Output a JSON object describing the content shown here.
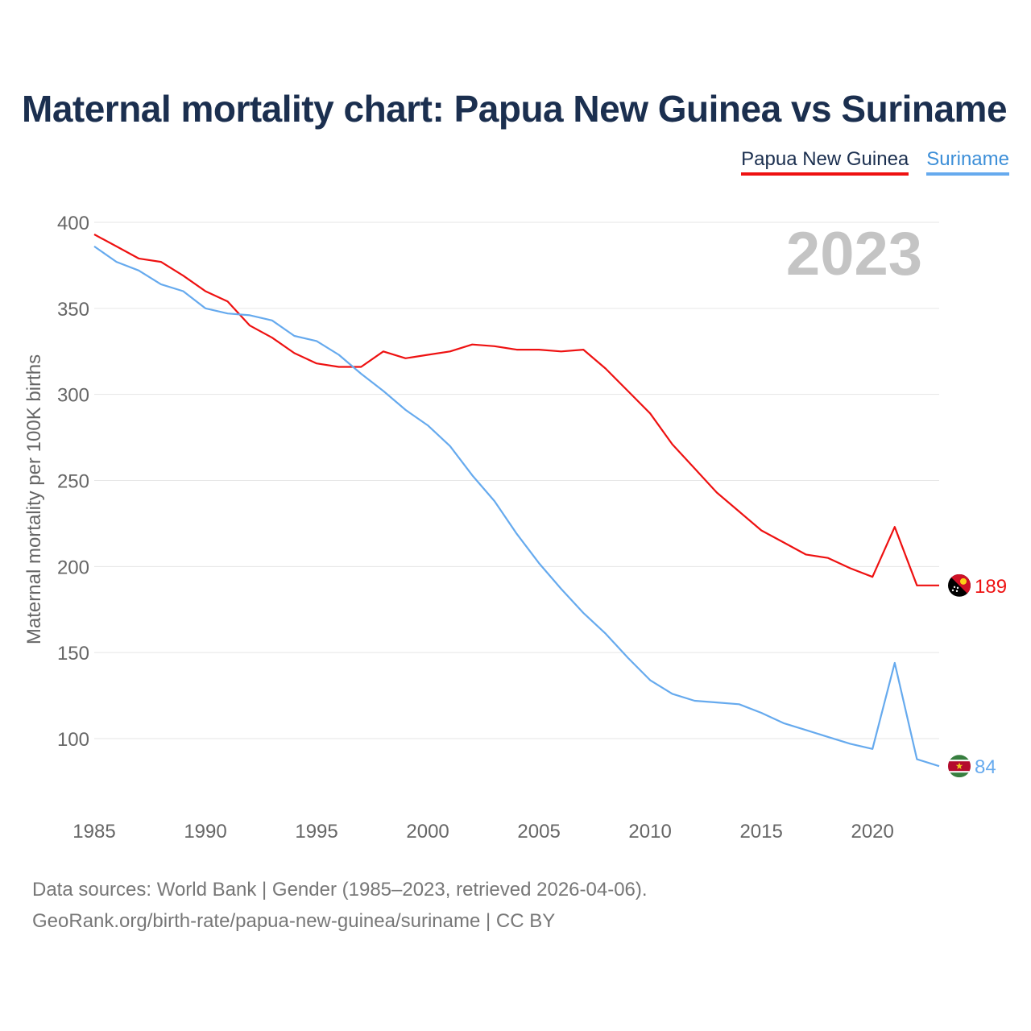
{
  "title": "Maternal mortality chart: Papua New Guinea vs Suriname",
  "legend": [
    {
      "label": "Papua New Guinea",
      "color": "#ee1111"
    },
    {
      "label": "Suriname",
      "color": "#66aaee"
    }
  ],
  "year_label": "2023",
  "footer": {
    "line1": "Data sources: World Bank | Gender (1985–2023, retrieved 2026-04-06).",
    "line2": "GeoRank.org/birth-rate/papua-new-guinea/suriname | CC BY"
  },
  "chart_data": {
    "type": "line",
    "title": "Maternal mortality chart: Papua New Guinea vs Suriname",
    "xlabel": "",
    "ylabel": "Maternal mortality per 100K births",
    "xlim": [
      1985,
      2023
    ],
    "ylim": [
      78,
      400
    ],
    "x_ticks": [
      1985,
      1990,
      1995,
      2000,
      2005,
      2010,
      2015,
      2020
    ],
    "y_ticks": [
      100,
      150,
      200,
      250,
      300,
      350,
      400
    ],
    "grid": true,
    "x": [
      1985,
      1986,
      1987,
      1988,
      1989,
      1990,
      1991,
      1992,
      1993,
      1994,
      1995,
      1996,
      1997,
      1998,
      1999,
      2000,
      2001,
      2002,
      2003,
      2004,
      2005,
      2006,
      2007,
      2008,
      2009,
      2010,
      2011,
      2012,
      2013,
      2014,
      2015,
      2016,
      2017,
      2018,
      2019,
      2020,
      2021,
      2022,
      2023
    ],
    "series": [
      {
        "name": "Papua New Guinea",
        "color": "#ee1111",
        "end_label": "189",
        "values": [
          393,
          386,
          379,
          377,
          369,
          360,
          354,
          340,
          333,
          324,
          318,
          316,
          316,
          325,
          321,
          323,
          325,
          329,
          328,
          326,
          326,
          325,
          326,
          315,
          302,
          289,
          271,
          257,
          243,
          232,
          221,
          214,
          207,
          205,
          199,
          194,
          223,
          189,
          189
        ]
      },
      {
        "name": "Suriname",
        "color": "#66aaee",
        "end_label": "84",
        "values": [
          386,
          377,
          372,
          364,
          360,
          350,
          347,
          346,
          343,
          334,
          331,
          323,
          312,
          302,
          291,
          282,
          270,
          253,
          238,
          219,
          202,
          187,
          173,
          161,
          147,
          134,
          126,
          122,
          121,
          120,
          115,
          109,
          105,
          101,
          97,
          94,
          144,
          88,
          84
        ]
      }
    ]
  }
}
